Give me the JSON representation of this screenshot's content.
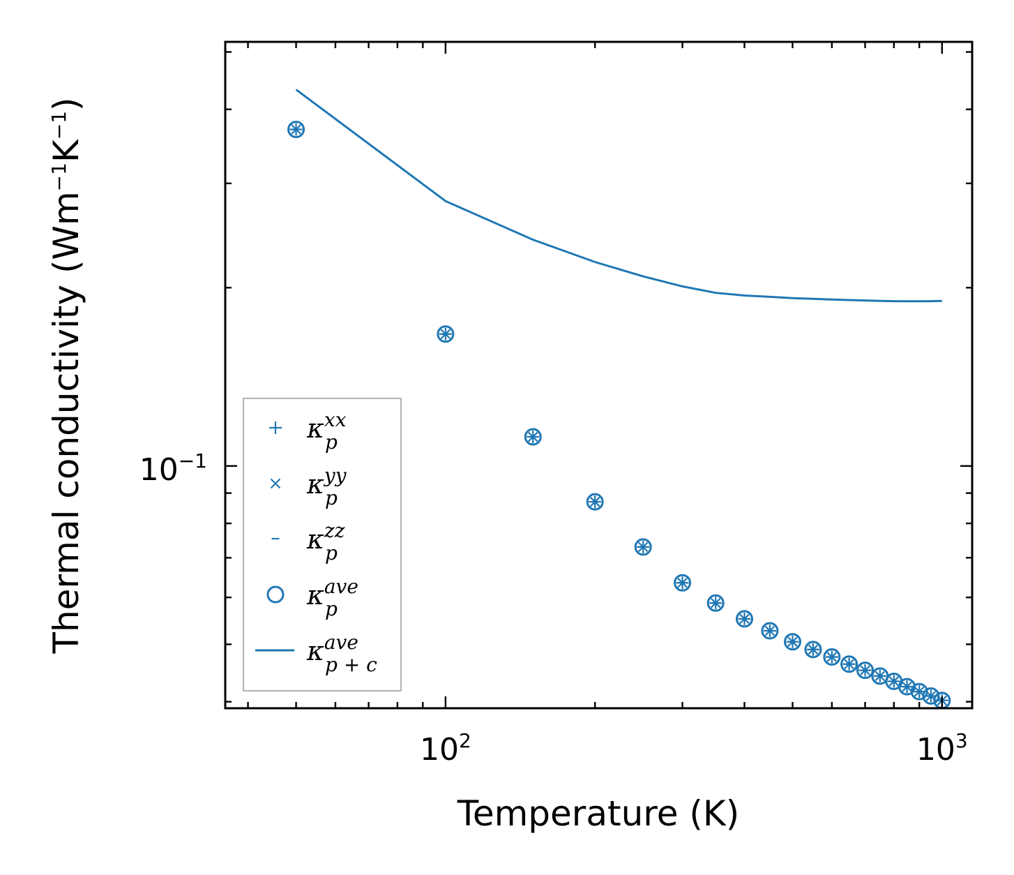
{
  "chart_data": {
    "type": "scatter",
    "xlabel": "Temperature (K)",
    "ylabel": "Thermal conductivity (Wm",
    "ylabel_sup1": "−1",
    "ylabel_mid": "K",
    "ylabel_sup2": "−1",
    "ylabel_end": ")",
    "xscale": "log",
    "yscale": "log",
    "xlim": [
      36,
      1150
    ],
    "ylim": [
      0.039,
      0.52
    ],
    "x_ticklabels": [
      {
        "value": 100,
        "base": "10",
        "exp": "2"
      },
      {
        "value": 1000,
        "base": "10",
        "exp": "3"
      }
    ],
    "y_ticklabels": [
      {
        "value": 0.1,
        "base": "10",
        "exp": "−1"
      }
    ],
    "legend_position": "lower-left",
    "legend": [
      {
        "marker": "plus",
        "symbol": "κ",
        "sup": "xx",
        "sub": "p"
      },
      {
        "marker": "x",
        "symbol": "κ",
        "sup": "yy",
        "sub": "p"
      },
      {
        "marker": "dash",
        "symbol": "κ",
        "sup": "zz",
        "sub": "p"
      },
      {
        "marker": "circle",
        "symbol": "κ",
        "sup": "ave",
        "sub": "p"
      },
      {
        "marker": "line",
        "symbol": "κ",
        "sup": "ave",
        "sub": "p + c"
      }
    ],
    "x": [
      50,
      100,
      150,
      200,
      250,
      300,
      350,
      400,
      450,
      500,
      550,
      600,
      650,
      700,
      750,
      800,
      850,
      900,
      950,
      1000
    ],
    "series": [
      {
        "name": "κ_p^xx",
        "values": [
          0.37,
          0.167,
          0.112,
          0.087,
          0.073,
          0.0635,
          0.0587,
          0.0552,
          0.0527,
          0.0505,
          0.049,
          0.0476,
          0.0463,
          0.0452,
          0.0442,
          0.0433,
          0.0424,
          0.0416,
          0.0409,
          0.0402
        ]
      },
      {
        "name": "κ_p^yy",
        "values": [
          0.37,
          0.167,
          0.112,
          0.087,
          0.073,
          0.0635,
          0.0587,
          0.0552,
          0.0527,
          0.0505,
          0.049,
          0.0476,
          0.0463,
          0.0452,
          0.0442,
          0.0433,
          0.0424,
          0.0416,
          0.0409,
          0.0402
        ]
      },
      {
        "name": "κ_p^zz",
        "values": [
          0.37,
          0.167,
          0.112,
          0.087,
          0.073,
          0.0635,
          0.0587,
          0.0552,
          0.0527,
          0.0505,
          0.049,
          0.0476,
          0.0463,
          0.0452,
          0.0442,
          0.0433,
          0.0424,
          0.0416,
          0.0409,
          0.0402
        ]
      },
      {
        "name": "κ_p^ave",
        "values": [
          0.37,
          0.167,
          0.112,
          0.087,
          0.073,
          0.0635,
          0.0587,
          0.0552,
          0.0527,
          0.0505,
          0.049,
          0.0476,
          0.0463,
          0.0452,
          0.0442,
          0.0433,
          0.0424,
          0.0416,
          0.0409,
          0.0402
        ]
      },
      {
        "name": "κ_p+c^ave",
        "values": [
          0.432,
          0.28,
          0.241,
          0.221,
          0.209,
          0.201,
          0.196,
          0.194,
          0.193,
          0.192,
          0.1915,
          0.191,
          0.1906,
          0.1903,
          0.19,
          0.1898,
          0.1897,
          0.1897,
          0.1898,
          0.19
        ]
      }
    ],
    "color": "#1f77b4"
  }
}
